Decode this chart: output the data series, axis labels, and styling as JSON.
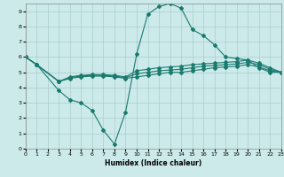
{
  "xlabel": "Humidex (Indice chaleur)",
  "background_color": "#cceaea",
  "grid_color": "#aacccc",
  "line_color": "#1a7a6e",
  "xlim": [
    0,
    23
  ],
  "ylim": [
    0,
    9.5
  ],
  "xticks": [
    0,
    1,
    2,
    3,
    4,
    5,
    6,
    7,
    8,
    9,
    10,
    11,
    12,
    13,
    14,
    15,
    16,
    17,
    18,
    19,
    20,
    21,
    22,
    23
  ],
  "yticks": [
    0,
    1,
    2,
    3,
    4,
    5,
    6,
    7,
    8,
    9
  ],
  "series": [
    {
      "x": [
        0,
        1,
        3,
        4,
        5,
        6,
        7,
        8,
        9,
        10,
        11,
        12,
        13,
        14,
        15,
        16,
        17,
        18,
        19,
        20,
        21,
        22,
        23
      ],
      "y": [
        6.0,
        5.5,
        3.8,
        3.2,
        3.0,
        2.5,
        1.2,
        0.3,
        2.4,
        6.2,
        8.8,
        9.3,
        9.5,
        9.2,
        7.8,
        7.4,
        6.8,
        6.0,
        5.9,
        5.8,
        5.3,
        5.0,
        5.0
      ]
    },
    {
      "x": [
        0,
        1,
        3,
        4,
        5,
        6,
        7,
        8,
        9,
        10,
        11,
        12,
        13,
        14,
        15,
        16,
        17,
        18,
        19,
        20,
        21,
        22,
        23
      ],
      "y": [
        6.0,
        5.5,
        4.4,
        4.7,
        4.8,
        4.85,
        4.85,
        4.8,
        4.7,
        5.1,
        5.2,
        5.3,
        5.35,
        5.4,
        5.5,
        5.55,
        5.6,
        5.65,
        5.7,
        5.8,
        5.6,
        5.3,
        5.0
      ]
    },
    {
      "x": [
        0,
        1,
        3,
        4,
        5,
        6,
        7,
        8,
        9,
        10,
        11,
        12,
        13,
        14,
        15,
        16,
        17,
        18,
        19,
        20,
        21,
        22,
        23
      ],
      "y": [
        6.0,
        5.5,
        4.4,
        4.65,
        4.75,
        4.8,
        4.8,
        4.75,
        4.65,
        4.9,
        5.0,
        5.1,
        5.15,
        5.2,
        5.3,
        5.4,
        5.45,
        5.5,
        5.55,
        5.65,
        5.5,
        5.2,
        5.0
      ]
    },
    {
      "x": [
        0,
        1,
        3,
        4,
        5,
        6,
        7,
        8,
        9,
        10,
        11,
        12,
        13,
        14,
        15,
        16,
        17,
        18,
        19,
        20,
        21,
        22,
        23
      ],
      "y": [
        6.0,
        5.5,
        4.4,
        4.6,
        4.7,
        4.75,
        4.75,
        4.7,
        4.6,
        4.7,
        4.8,
        4.9,
        5.0,
        5.0,
        5.1,
        5.2,
        5.3,
        5.35,
        5.4,
        5.5,
        5.35,
        5.1,
        5.0
      ]
    }
  ]
}
